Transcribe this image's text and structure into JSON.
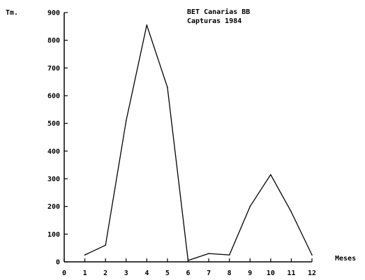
{
  "chart_data": {
    "type": "line",
    "title": [
      "BET Canarias BB",
      "Capturas 1984"
    ],
    "xlabel": "Meses",
    "ylabel": "Tm.",
    "x": [
      1,
      2,
      3,
      4,
      5,
      6,
      7,
      8,
      9,
      10,
      11,
      12
    ],
    "xticks": [
      "0",
      "1",
      "2",
      "3",
      "4",
      "5",
      "6",
      "7",
      "8",
      "9",
      "10",
      "11",
      "12"
    ],
    "yticks": [
      "0",
      "100",
      "200",
      "300",
      "400",
      "500",
      "600",
      "700",
      "800",
      "900"
    ],
    "series": [
      {
        "values": [
          25,
          60,
          510,
          855,
          630,
          5,
          30,
          25,
          200,
          315,
          180,
          25
        ]
      }
    ],
    "xlim": [
      0,
      12
    ],
    "ylim": [
      0,
      900
    ],
    "grid": false,
    "line_color": "#000000"
  }
}
